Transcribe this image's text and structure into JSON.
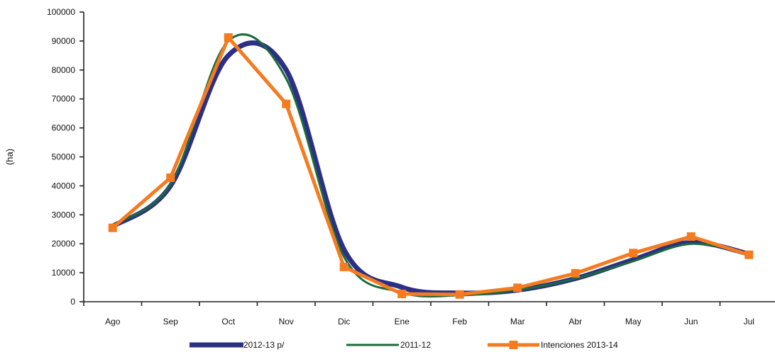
{
  "chart_data": {
    "type": "line",
    "title": "",
    "xlabel": "",
    "ylabel": "(ha)",
    "ylim": [
      0,
      100000
    ],
    "yticks": [
      0,
      10000,
      20000,
      30000,
      40000,
      50000,
      60000,
      70000,
      80000,
      90000,
      100000
    ],
    "categories": [
      "Ago",
      "Sep",
      "Oct",
      "Nov",
      "Dic",
      "Ene",
      "Feb",
      "Mar",
      "Abr",
      "May",
      "Jun",
      "Jul"
    ],
    "grid": false,
    "legend_position": "bottom",
    "series": [
      {
        "name": "2012-13 p/",
        "color": "#2b2f86",
        "marker": "none",
        "smooth": true,
        "values": [
          26000,
          40000,
          85000,
          80000,
          18000,
          5000,
          3000,
          4000,
          8000,
          14500,
          20500,
          16500
        ]
      },
      {
        "name": "2011-12",
        "color": "#1a6b3a",
        "marker": "none",
        "smooth": true,
        "values": [
          26500,
          40500,
          90000,
          77000,
          15500,
          3200,
          2200,
          4000,
          8000,
          14000,
          20000,
          16500
        ]
      },
      {
        "name": "Intenciones 2013-14",
        "color": "#f47b20",
        "marker": "square",
        "smooth": false,
        "values": [
          25500,
          42800,
          91200,
          68300,
          12000,
          2700,
          2500,
          4800,
          9800,
          16800,
          22500,
          16200
        ]
      }
    ]
  }
}
